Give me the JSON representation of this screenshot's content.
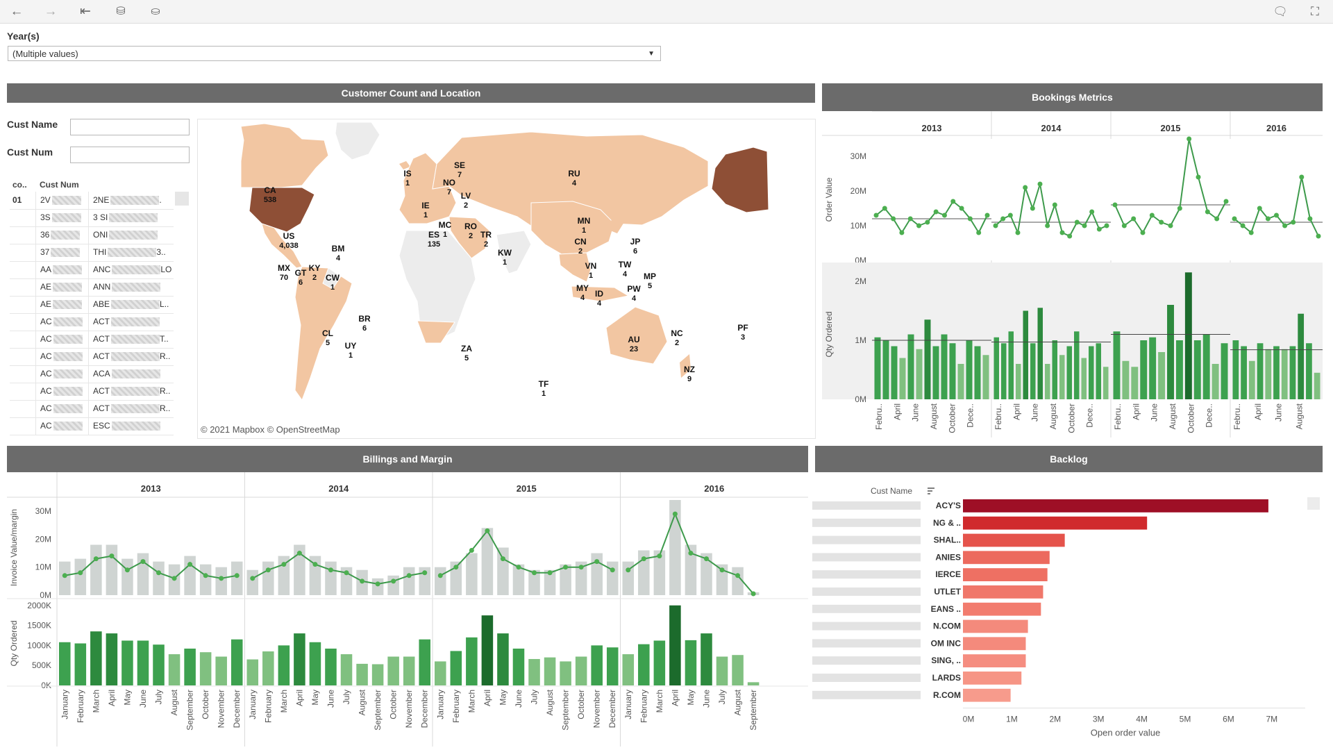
{
  "filter": {
    "label": "Year(s)",
    "value": "(Multiple values)"
  },
  "panels": {
    "customer": "Customer Count and Location",
    "bookings": "Bookings Metrics",
    "billings": "Billings and Margin",
    "backlog": "Backlog"
  },
  "customer_filters": {
    "name_label": "Cust Name",
    "num_label": "Cust Num"
  },
  "customer_table": {
    "headers": [
      "co..",
      "Cust Num"
    ],
    "rows": [
      {
        "c1": "01",
        "c2": "2V",
        "c3": "2NE",
        "c3s": "."
      },
      {
        "c1": "",
        "c2": "3S",
        "c3": "3 SI",
        "c3s": ""
      },
      {
        "c1": "",
        "c2": "36",
        "c3": "ONI",
        "c3s": ""
      },
      {
        "c1": "",
        "c2": "37",
        "c3": "THI",
        "c3s": "3.."
      },
      {
        "c1": "",
        "c2": "AA",
        "c3": "ANC",
        "c3s": "LO"
      },
      {
        "c1": "",
        "c2": "AE",
        "c3": "ANN",
        "c3s": ""
      },
      {
        "c1": "",
        "c2": "AE",
        "c3": "ABE",
        "c3s": "L.."
      },
      {
        "c1": "",
        "c2": "AC",
        "c3": "ACT",
        "c3s": ""
      },
      {
        "c1": "",
        "c2": "AC",
        "c3": "ACT",
        "c3s": "T.."
      },
      {
        "c1": "",
        "c2": "AC",
        "c3": "ACT",
        "c3s": "R.."
      },
      {
        "c1": "",
        "c2": "AC",
        "c3": "ACA",
        "c3s": ""
      },
      {
        "c1": "",
        "c2": "AC",
        "c3": "ACT",
        "c3s": "R.."
      },
      {
        "c1": "",
        "c2": "AC",
        "c3": "ACT",
        "c3s": "R.."
      },
      {
        "c1": "",
        "c2": "AC",
        "c3": "ESC",
        "c3s": ""
      }
    ]
  },
  "map": {
    "attribution": "© 2021 Mapbox  © OpenStreetMap",
    "labels": [
      {
        "code": "CA",
        "count": "538"
      },
      {
        "code": "US",
        "count": "4,038"
      },
      {
        "code": "MX",
        "count": "70"
      },
      {
        "code": "BM",
        "count": "4"
      },
      {
        "code": "KY",
        "count": "2"
      },
      {
        "code": "GT",
        "count": "6"
      },
      {
        "code": "CW",
        "count": "1"
      },
      {
        "code": "BR",
        "count": "6"
      },
      {
        "code": "CL",
        "count": "5"
      },
      {
        "code": "UY",
        "count": "1"
      },
      {
        "code": "IS",
        "count": "1"
      },
      {
        "code": "SE",
        "count": "7"
      },
      {
        "code": "NO",
        "count": "7"
      },
      {
        "code": "LV",
        "count": "2"
      },
      {
        "code": "IE",
        "count": "1"
      },
      {
        "code": "MC",
        "count": "1"
      },
      {
        "code": "RO",
        "count": "2"
      },
      {
        "code": "ES",
        "count": "135"
      },
      {
        "code": "TR",
        "count": "2"
      },
      {
        "code": "KW",
        "count": "1"
      },
      {
        "code": "RU",
        "count": "4"
      },
      {
        "code": "MN",
        "count": "1"
      },
      {
        "code": "CN",
        "count": "2"
      },
      {
        "code": "JP",
        "count": "6"
      },
      {
        "code": "TW",
        "count": "4"
      },
      {
        "code": "VN",
        "count": "1"
      },
      {
        "code": "MY",
        "count": "4"
      },
      {
        "code": "ID",
        "count": "4"
      },
      {
        "code": "PW",
        "count": "4"
      },
      {
        "code": "MP",
        "count": "5"
      },
      {
        "code": "ZA",
        "count": "5"
      },
      {
        "code": "AU",
        "count": "23"
      },
      {
        "code": "NC",
        "count": "2"
      },
      {
        "code": "NZ",
        "count": "9"
      },
      {
        "code": "PF",
        "count": "3"
      },
      {
        "code": "TF",
        "count": "1"
      }
    ]
  },
  "chart_data": [
    {
      "type": "line",
      "title": "Bookings Metrics",
      "ylabel": "Order Value",
      "ylim": [
        0,
        35
      ],
      "yticks": [
        "30M",
        "20M",
        "10M",
        "0M"
      ],
      "years": [
        "2013",
        "2014",
        "2015",
        "2016"
      ],
      "month_labels": [
        "Febru..",
        "April",
        "June",
        "August",
        "October",
        "Dece..",
        "Febru..",
        "April",
        "June",
        "August",
        "October",
        "Dece..",
        "Febru..",
        "April",
        "June",
        "August",
        "October",
        "Dece..",
        "Febru..",
        "April",
        "June",
        "August"
      ],
      "series": [
        {
          "values": [
            [
              13,
              15,
              12,
              8,
              12,
              10,
              11,
              14,
              13,
              17,
              15,
              12,
              8,
              13
            ],
            [
              10,
              12,
              13,
              8,
              21,
              15,
              22,
              10,
              16,
              8,
              7,
              11,
              10,
              14,
              9,
              10
            ],
            [
              16,
              10,
              12,
              8,
              13,
              11,
              10,
              15,
              35,
              24,
              14,
              12,
              17
            ],
            [
              12,
              10,
              8,
              15,
              12,
              13,
              10,
              11,
              24,
              12,
              7
            ]
          ]
        }
      ],
      "reference": [
        12,
        11,
        16,
        11
      ]
    },
    {
      "type": "bar",
      "ylabel": "Qty Ordered",
      "ylim": [
        0,
        2.2
      ],
      "yticks": [
        "2M",
        "1M",
        "0M"
      ],
      "series": [
        {
          "values": [
            [
              1.05,
              1.0,
              0.9,
              0.7,
              1.1,
              0.85,
              1.35,
              0.9,
              1.1,
              0.95,
              0.6,
              1.0,
              0.9,
              0.75
            ],
            [
              1.05,
              0.95,
              1.15,
              0.6,
              1.5,
              0.95,
              1.55,
              0.6,
              1.0,
              0.75,
              0.9,
              1.15,
              0.7,
              0.9,
              0.95,
              0.55
            ],
            [
              1.15,
              0.65,
              0.55,
              1.0,
              1.05,
              0.8,
              1.6,
              1.0,
              2.15,
              1.0,
              1.1,
              0.6,
              0.95
            ],
            [
              1.0,
              0.9,
              0.65,
              0.95,
              0.85,
              0.9,
              0.85,
              0.9,
              1.45,
              0.95,
              0.45
            ]
          ]
        }
      ],
      "reference": [
        1.0,
        0.97,
        1.1,
        0.84
      ]
    },
    {
      "type": "bar",
      "title": "Billings and Margin",
      "ylabel": "Invoice Value/margin",
      "ylim": [
        0,
        34
      ],
      "yticks": [
        "30M",
        "20M",
        "10M",
        "0M"
      ],
      "years": [
        "2013",
        "2014",
        "2015",
        "2016"
      ],
      "month_labels": [
        "January",
        "February",
        "March",
        "April",
        "May",
        "June",
        "July",
        "August",
        "September",
        "October",
        "November",
        "December"
      ],
      "series": [
        {
          "name": "Invoice Value",
          "values": [
            [
              12,
              13,
              18,
              18,
              13,
              15,
              12,
              11,
              14,
              11,
              10,
              12
            ],
            [
              9,
              12,
              14,
              18,
              14,
              12,
              10,
              9,
              6,
              7,
              10,
              10
            ],
            [
              10,
              12,
              15,
              24,
              17,
              11,
              9,
              9,
              11,
              12,
              15,
              12
            ],
            [
              12,
              16,
              16,
              34,
              18,
              15,
              11,
              10,
              1,
              0,
              0,
              0
            ]
          ]
        },
        {
          "name": "Margin",
          "values": [
            [
              7,
              8,
              13,
              14,
              9,
              12,
              8,
              6,
              11,
              7,
              6,
              7
            ],
            [
              6,
              9,
              11,
              15,
              11,
              9,
              8,
              5,
              4,
              5,
              7,
              8
            ],
            [
              7,
              10,
              16,
              23,
              13,
              10,
              8,
              8,
              10,
              10,
              12,
              9
            ],
            [
              9,
              13,
              14,
              29,
              15,
              13,
              9,
              7,
              0.5,
              0,
              0,
              0
            ]
          ]
        }
      ]
    },
    {
      "type": "bar",
      "ylabel": "Qty Ordered",
      "ylim": [
        0,
        2100
      ],
      "yticks": [
        "2000K",
        "1500K",
        "1000K",
        "500K",
        "0K"
      ],
      "series": [
        {
          "values": [
            [
              1080,
              1050,
              1350,
              1300,
              1120,
              1120,
              1020,
              780,
              920,
              830,
              720,
              1150
            ],
            [
              650,
              850,
              1000,
              1300,
              1080,
              920,
              780,
              540,
              530,
              720,
              720,
              1150
            ],
            [
              600,
              860,
              1200,
              1750,
              1300,
              920,
              660,
              700,
              600,
              720,
              1000,
              950
            ],
            [
              780,
              1030,
              1120,
              2000,
              1130,
              1300,
              720,
              760,
              80,
              0,
              0,
              0
            ]
          ]
        }
      ]
    },
    {
      "type": "bar",
      "title": "Backlog",
      "ylabel": "Cust Name",
      "xlabel": "Open order value",
      "xlim": [
        0,
        7.5
      ],
      "xticks": [
        "0M",
        "1M",
        "2M",
        "3M",
        "4M",
        "5M",
        "6M",
        "7M"
      ],
      "categories": [
        "ACY'S",
        "NG & ..",
        "SHAL..",
        "ANIES",
        "IERCE",
        "UTLET",
        "EANS ..",
        "N.COM",
        "OM INC",
        "SING, ..",
        "LARDS",
        "R.COM"
      ],
      "values": [
        7.05,
        4.25,
        2.35,
        2.0,
        1.95,
        1.85,
        1.8,
        1.5,
        1.45,
        1.45,
        1.35,
        1.1
      ],
      "colors": [
        "#9e0f26",
        "#d02a2d",
        "#e5534b",
        "#ec6a5e",
        "#ee7063",
        "#f0776a",
        "#f27c6e",
        "#f48a7c",
        "#f48a7c",
        "#f58d80",
        "#f69585",
        "#f79b8c"
      ]
    }
  ]
}
